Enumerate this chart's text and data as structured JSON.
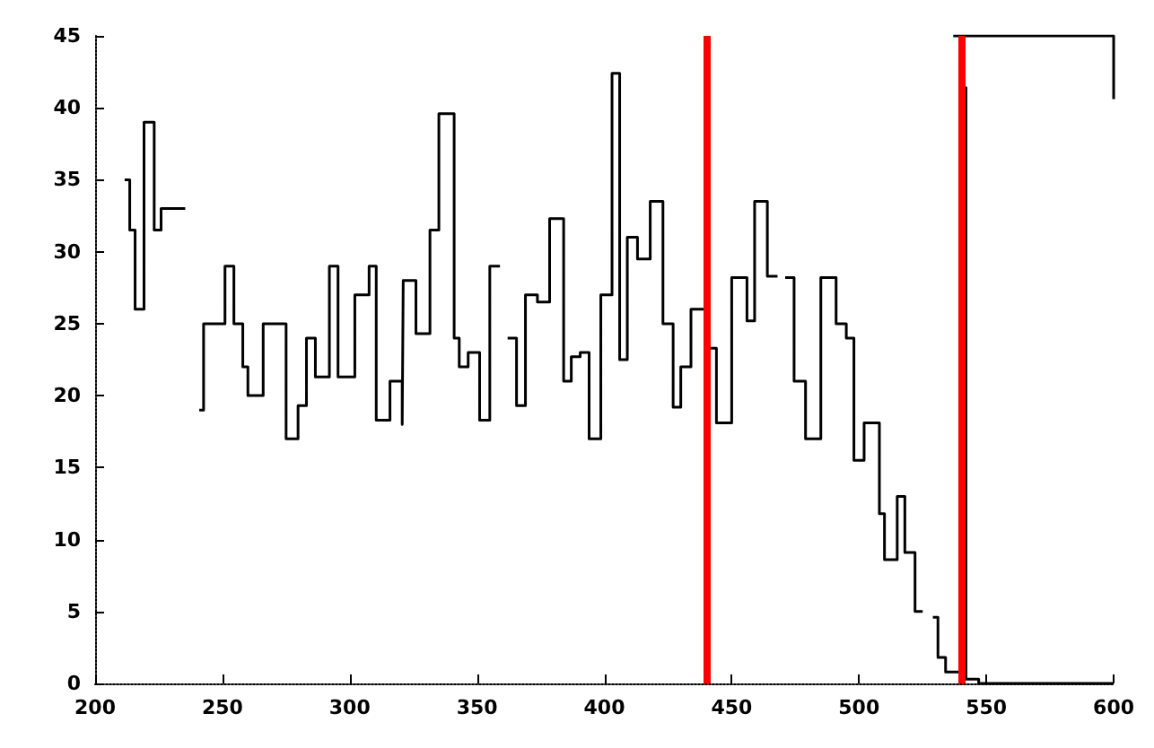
{
  "chart_data": {
    "type": "step",
    "series": [
      {
        "color": "#000000",
        "x": [
          211.6,
          213.6,
          215.7,
          219.2,
          223.2,
          225.9,
          235.4,
          240.9,
          242.6,
          251,
          254.5,
          258,
          260,
          266,
          275,
          279.7,
          283,
          286.5,
          292,
          295.4,
          302,
          307.6,
          310.4,
          315.8,
          320.6,
          321,
          326,
          331.5,
          335,
          341,
          343,
          346.5,
          351,
          355,
          359,
          362,
          365.5,
          369,
          373.7,
          378.5,
          384,
          387,
          390.5,
          394,
          398.6,
          403,
          406,
          409,
          413,
          418,
          423,
          427,
          430,
          434,
          440,
          444,
          450,
          456,
          459,
          464,
          468,
          471,
          474.5,
          479,
          485,
          491,
          495,
          498,
          502,
          508,
          510,
          515,
          518,
          522,
          525,
          529,
          531,
          534,
          538,
          541,
          542,
          547,
          600
        ],
        "values": [
          35,
          31.5,
          26,
          39,
          31.5,
          33,
          null,
          19,
          25,
          29,
          25,
          22,
          20,
          25,
          17,
          19.3,
          24,
          21.3,
          29,
          21.3,
          27,
          29,
          18.3,
          21,
          18,
          28,
          24.3,
          31.5,
          39.6,
          24,
          22,
          23,
          18.3,
          29,
          null,
          24,
          19.3,
          27,
          26.5,
          32.3,
          21,
          22.7,
          23,
          17,
          27,
          42.4,
          22.5,
          31,
          29.5,
          33.5,
          25,
          19.2,
          22,
          26,
          23.3,
          18.1,
          28.2,
          25.2,
          33.5,
          28.3,
          null,
          28.2,
          21,
          17,
          28.2,
          25,
          24,
          15.5,
          18.1,
          11.8,
          8.6,
          13,
          9.1,
          5,
          null,
          4.6,
          1.8,
          0.8,
          0.8,
          41.4,
          0.3,
          0,
          0
        ]
      },
      {
        "type": "line",
        "color": "#000000",
        "x": [
          537,
          600,
          600
        ],
        "values": [
          45,
          45,
          40.6
        ]
      }
    ],
    "xlim": [
      200,
      600
    ],
    "xticks": [
      200,
      250,
      300,
      350,
      400,
      450,
      500,
      550,
      600
    ],
    "ylim": [
      0,
      45
    ],
    "yticks": [
      0,
      5,
      10,
      15,
      20,
      25,
      30,
      35,
      40,
      45
    ],
    "ref_lines": [
      {
        "axis": "x",
        "value": 440,
        "color": "#ff0000"
      },
      {
        "axis": "x",
        "value": 540,
        "color": "#ff0000"
      }
    ],
    "grid": false
  }
}
